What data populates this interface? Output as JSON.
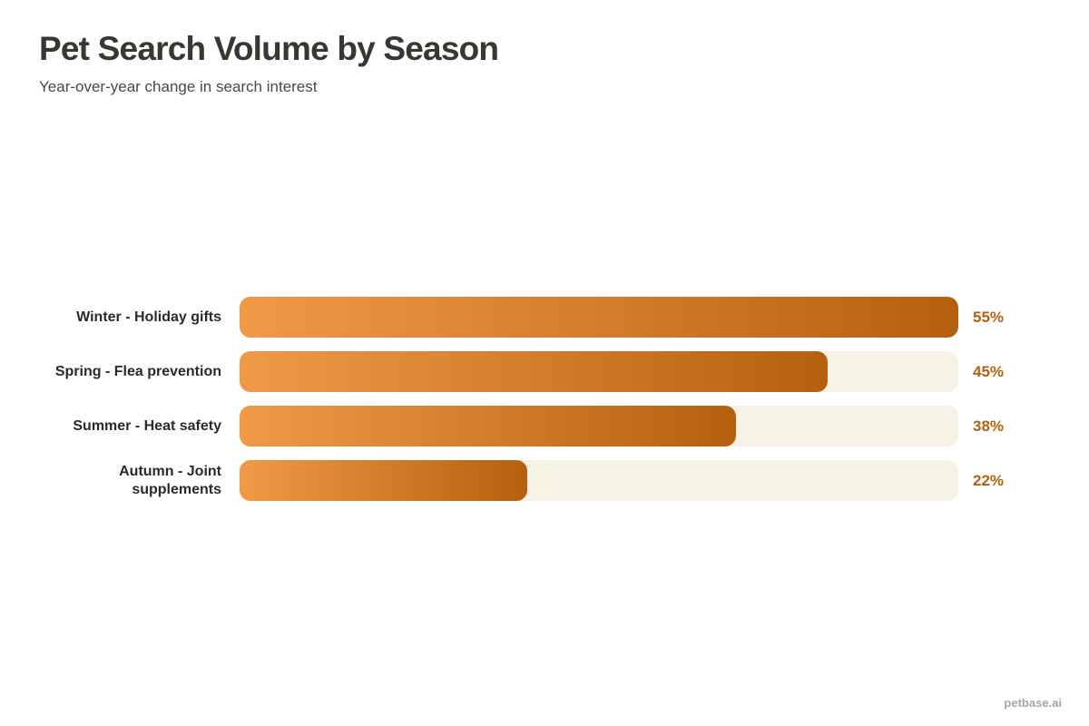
{
  "page": {
    "title": "Pet Search Volume by Season",
    "subtitle": "Year-over-year change in search interest",
    "watermark": "petbase.ai"
  },
  "colors": {
    "bar_gradient_start": "#F09A47",
    "bar_gradient_end": "#B4600E",
    "track": "#F7F2E6",
    "value_text": "#B5610E",
    "title_text": "#3A3733",
    "subtitle_text": "#4C4842",
    "label_text": "#2D2A26",
    "watermark_text": "#A9A6A3"
  },
  "chart_data": {
    "type": "bar",
    "orientation": "horizontal",
    "title": "Pet Search Volume by Season",
    "subtitle": "Year-over-year change in search interest",
    "categories": [
      "Winter - Holiday gifts",
      "Spring - Flea prevention",
      "Summer - Heat safety",
      "Autumn - Joint supplements"
    ],
    "values": [
      55,
      45,
      38,
      22
    ],
    "value_labels": [
      "55%",
      "45%",
      "38%",
      "22%"
    ],
    "value_suffix": "%",
    "scale_max": 55,
    "xlabel": "",
    "ylabel": "",
    "grid": false,
    "legend": false
  }
}
